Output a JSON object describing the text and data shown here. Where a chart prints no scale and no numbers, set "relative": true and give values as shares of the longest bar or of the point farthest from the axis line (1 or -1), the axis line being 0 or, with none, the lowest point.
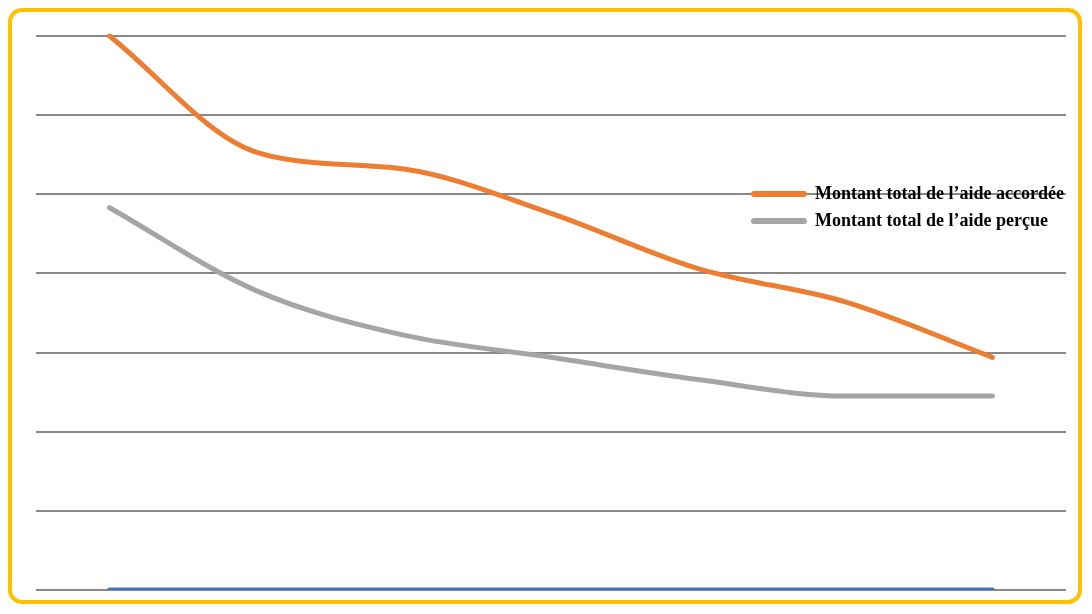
{
  "chart_data": {
    "type": "line",
    "relative": true,
    "categories": [
      null,
      null,
      null,
      null,
      null,
      null,
      null
    ],
    "series": [
      {
        "name": "Montant total de l’aide accordée",
        "color": "#ed7d31",
        "values": [
          1.0,
          0.79,
          0.76,
          0.68,
          0.58,
          0.52,
          0.42
        ]
      },
      {
        "name": "Montant total de l’aide perçue",
        "color": "#a5a5a5",
        "values": [
          0.69,
          0.54,
          0.46,
          0.42,
          0.38,
          0.35,
          0.35
        ]
      },
      {
        "color": "#4472c4",
        "values": [
          0,
          0,
          0,
          0,
          0,
          0,
          0
        ]
      }
    ],
    "grid": "y",
    "legend": "right",
    "marker": "none"
  }
}
